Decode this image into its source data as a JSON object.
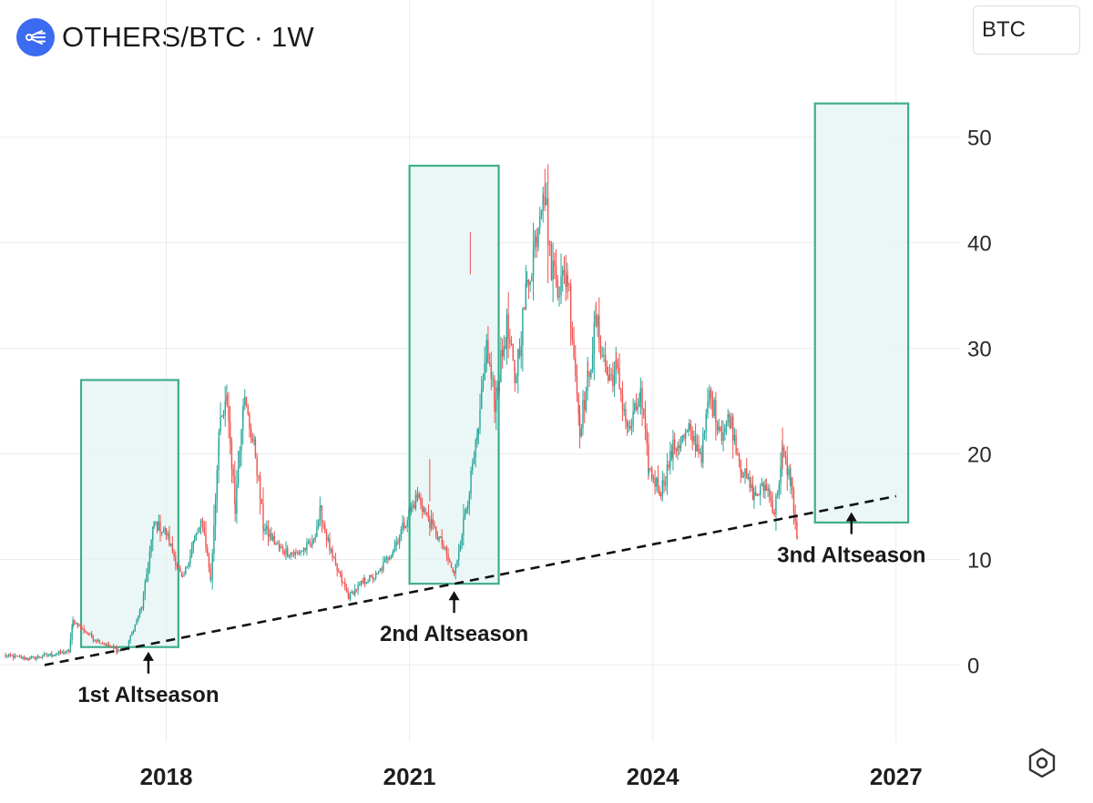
{
  "header": {
    "title": "OTHERS/BTC · 1W",
    "logo_icon": "network-lines-icon",
    "logo_color": "#3b6bf0"
  },
  "currency": {
    "label": "BTC"
  },
  "settings": {
    "icon": "hexagon-gear-icon"
  },
  "chart_data": {
    "type": "candlestick",
    "title": "OTHERS/BTC · 1W",
    "xlabel": "",
    "ylabel": "",
    "x_ticks": [
      "2018",
      "2021",
      "2024",
      "2027"
    ],
    "y_ticks": [
      0,
      10,
      20,
      30,
      40,
      50
    ],
    "xlim": [
      2015.95,
      2027.8
    ],
    "ylim": [
      -6,
      63
    ],
    "grid": true,
    "colors": {
      "up": "#26a69a",
      "down": "#ef5350",
      "box_stroke": "#3fae8c",
      "box_fill": "#e4f4f3",
      "trendline": "#111111"
    },
    "price_path": [
      [
        2016.0,
        0.9
      ],
      [
        2016.3,
        0.6
      ],
      [
        2016.6,
        1.0
      ],
      [
        2016.8,
        1.3
      ],
      [
        2016.85,
        4.2
      ],
      [
        2017.1,
        2.5
      ],
      [
        2017.4,
        1.4
      ],
      [
        2017.5,
        1.5
      ],
      [
        2017.7,
        5.5
      ],
      [
        2017.85,
        13.5
      ],
      [
        2018.0,
        12.5
      ],
      [
        2018.2,
        8.0
      ],
      [
        2018.35,
        12.0
      ],
      [
        2018.45,
        13.5
      ],
      [
        2018.55,
        8.0
      ],
      [
        2018.65,
        22.0
      ],
      [
        2018.75,
        25.0
      ],
      [
        2018.85,
        15.0
      ],
      [
        2018.95,
        25.5
      ],
      [
        2019.1,
        20.0
      ],
      [
        2019.2,
        13.0
      ],
      [
        2019.4,
        11.0
      ],
      [
        2019.6,
        10.5
      ],
      [
        2019.8,
        11.5
      ],
      [
        2019.9,
        14.5
      ],
      [
        2020.05,
        10.0
      ],
      [
        2020.25,
        6.5
      ],
      [
        2020.45,
        8.0
      ],
      [
        2020.6,
        8.5
      ],
      [
        2020.8,
        11.0
      ],
      [
        2021.0,
        14.5
      ],
      [
        2021.1,
        16.0
      ],
      [
        2021.25,
        13.5
      ],
      [
        2021.4,
        11.5
      ],
      [
        2021.55,
        8.5
      ],
      [
        2021.7,
        15.0
      ],
      [
        2021.85,
        22.0
      ],
      [
        2021.95,
        30.0
      ],
      [
        2022.05,
        25.0
      ],
      [
        2022.2,
        32.0
      ],
      [
        2022.3,
        27.0
      ],
      [
        2022.45,
        36.0
      ],
      [
        2022.55,
        40.0
      ],
      [
        2022.65,
        46.0
      ],
      [
        2022.75,
        38.0
      ],
      [
        2022.85,
        36.0
      ],
      [
        2022.95,
        37.0
      ],
      [
        2023.1,
        22.5
      ],
      [
        2023.2,
        27.0
      ],
      [
        2023.3,
        32.5
      ],
      [
        2023.45,
        27.0
      ],
      [
        2023.55,
        28.0
      ],
      [
        2023.7,
        22.0
      ],
      [
        2023.85,
        25.5
      ],
      [
        2023.95,
        18.5
      ],
      [
        2024.1,
        16.5
      ],
      [
        2024.25,
        20.5
      ],
      [
        2024.45,
        22.0
      ],
      [
        2024.6,
        20.0
      ],
      [
        2024.7,
        25.5
      ],
      [
        2024.85,
        22.0
      ],
      [
        2024.95,
        23.5
      ],
      [
        2025.1,
        18.5
      ],
      [
        2025.25,
        16.0
      ],
      [
        2025.4,
        17.0
      ],
      [
        2025.5,
        14.5
      ],
      [
        2025.6,
        20.0
      ],
      [
        2025.7,
        17.5
      ],
      [
        2025.78,
        12.0
      ]
    ],
    "trendline": {
      "from": [
        2016.5,
        0.0
      ],
      "to": [
        2027.0,
        16.0
      ],
      "style": "dashed"
    },
    "annotations": [
      {
        "label": "1st Altseason",
        "box": {
          "x0": 2016.95,
          "x1": 2018.15,
          "y0": 1.7,
          "y1": 27.0
        },
        "arrow_x": 2017.78
      },
      {
        "label": "2nd Altseason",
        "box": {
          "x0": 2021.0,
          "x1": 2022.1,
          "y0": 7.7,
          "y1": 47.3
        },
        "arrow_x": 2021.55
      },
      {
        "label": "3nd Altseason",
        "box": {
          "x0": 2026.0,
          "x1": 2027.15,
          "y0": 13.5,
          "y1": 53.2
        },
        "arrow_x": 2026.45
      }
    ]
  }
}
